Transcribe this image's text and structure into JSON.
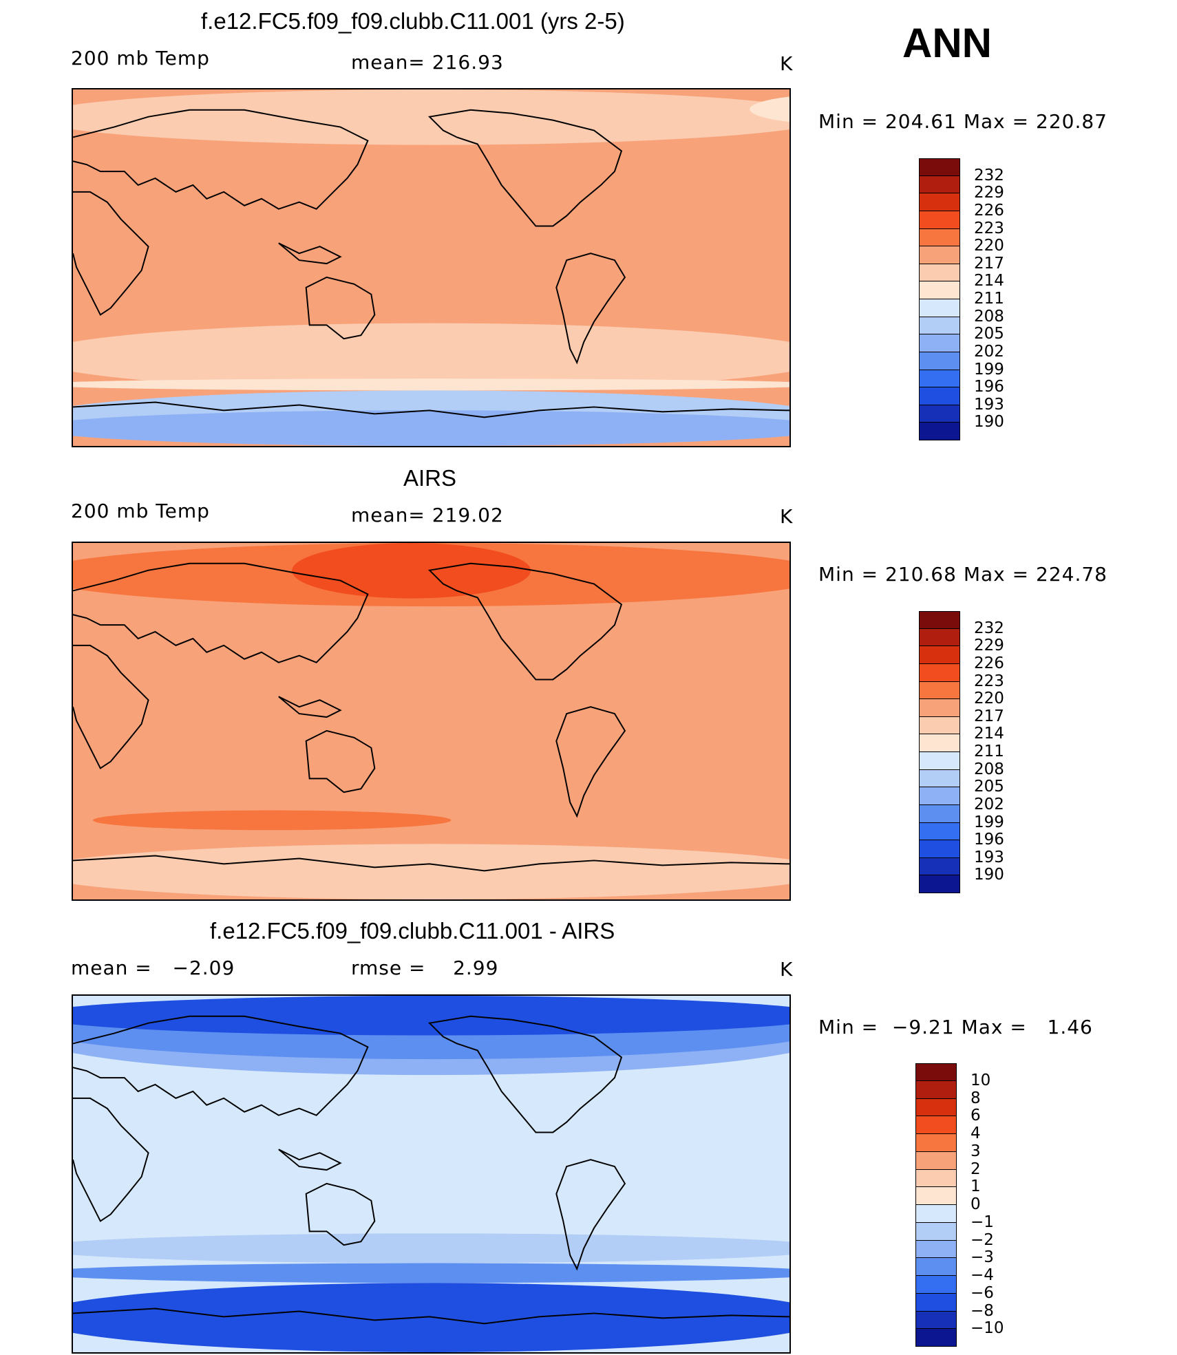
{
  "season": "ANN",
  "panels": [
    {
      "id": "model",
      "title": "f.e12.FC5.f09_f09.clubb.C11.001 (yrs 2-5)",
      "left_label": "200 mb Temp",
      "mid_label": "mean=",
      "mid_value": "216.93",
      "units": "K",
      "minmax": {
        "min_label": "Min",
        "min": "204.61",
        "max_label": "Max",
        "max": "220.87"
      }
    },
    {
      "id": "obs",
      "title": "AIRS",
      "left_label": "200 mb Temp",
      "mid_label": "mean=",
      "mid_value": "219.02",
      "units": "K",
      "minmax": {
        "min_label": "Min",
        "min": "210.68",
        "max_label": "Max",
        "max": "224.78"
      }
    },
    {
      "id": "diff",
      "title": "f.e12.FC5.f09_f09.clubb.C11.001 - AIRS",
      "left_label": "mean =",
      "left_value": "−2.09",
      "mid_label": "rmse =",
      "mid_value": "2.99",
      "units": "K",
      "minmax": {
        "min_label": "Min",
        "min": "−9.21",
        "max_label": "Max",
        "max": "1.46"
      }
    }
  ],
  "colorbars": {
    "abs_labels": [
      "232",
      "229",
      "226",
      "223",
      "220",
      "217",
      "214",
      "211",
      "208",
      "205",
      "202",
      "199",
      "196",
      "193",
      "190"
    ],
    "diff_labels": [
      "10",
      "8",
      "6",
      "4",
      "3",
      "2",
      "1",
      "0",
      "−1",
      "−2",
      "−3",
      "−4",
      "−6",
      "−8",
      "−10"
    ],
    "colors": [
      "#7a0c0c",
      "#b01e10",
      "#d7300f",
      "#f24d1f",
      "#f7763f",
      "#f8a27a",
      "#fbccb0",
      "#fde5d2",
      "#d6e8fb",
      "#b2cdf6",
      "#8db1f4",
      "#5d8ff1",
      "#336ff0",
      "#1e4fe0",
      "#1730b8",
      "#0b1690"
    ]
  },
  "maps": {
    "model": {
      "background": "#f8a27a",
      "bands": [
        {
          "level": "#fbccb0",
          "lat_from": 90,
          "lat_to": 62
        },
        {
          "level": "#fde5d2",
          "lat_from": 88,
          "lat_to": 72,
          "lon_from": 10,
          "lon_to": 110
        },
        {
          "level": "#fbccb0",
          "lat_from": -28,
          "lat_to": -62
        },
        {
          "level": "#fde5d2",
          "lat_from": -56,
          "lat_to": -62
        },
        {
          "level": "#b2cdf6",
          "lat_from": -62,
          "lat_to": -90
        },
        {
          "level": "#8db1f4",
          "lat_from": -72,
          "lat_to": -90
        }
      ]
    },
    "obs": {
      "background": "#f8a27a",
      "bands": [
        {
          "level": "#f7763f",
          "lat_from": 90,
          "lat_to": 58
        },
        {
          "level": "#f24d1f",
          "lat_from": 90,
          "lat_to": 62,
          "lon_from": 140,
          "lon_to": 260
        },
        {
          "level": "#f7763f",
          "lat_from": -45,
          "lat_to": -55,
          "lon_from": 40,
          "lon_to": 220
        },
        {
          "level": "#fbccb0",
          "lat_from": -62,
          "lat_to": -90
        }
      ]
    },
    "diff": {
      "background": "#d6e8fb",
      "bands": [
        {
          "level": "#8db1f4",
          "lat_from": 90,
          "lat_to": 50
        },
        {
          "level": "#5d8ff1",
          "lat_from": 90,
          "lat_to": 58
        },
        {
          "level": "#1e4fe0",
          "lat_from": 90,
          "lat_to": 70
        },
        {
          "level": "#b2cdf6",
          "lat_from": -30,
          "lat_to": -45
        },
        {
          "level": "#5d8ff1",
          "lat_from": -45,
          "lat_to": -55
        },
        {
          "level": "#1e4fe0",
          "lat_from": -55,
          "lat_to": -90
        }
      ]
    }
  }
}
